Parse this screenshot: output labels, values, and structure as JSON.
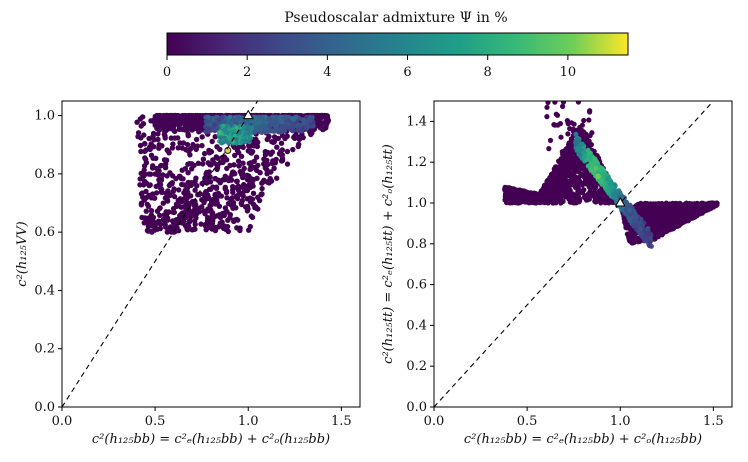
{
  "colorbar": {
    "title": "Pseudoscalar admixture Ψ in %",
    "min": 0,
    "max": 11.5,
    "ticks": [
      0,
      2,
      4,
      6,
      8,
      10
    ],
    "tick_labels": [
      "0",
      "2",
      "4",
      "6",
      "8",
      "10"
    ]
  },
  "colors": {
    "viridis_low": "#440154",
    "viridis_q1": "#3b528b",
    "viridis_mid": "#21918c",
    "viridis_q3": "#5ec962",
    "viridis_high": "#fde725",
    "diagonal_line": "#000000",
    "sm_marker_fill": "#ffffff"
  },
  "chart_data": [
    {
      "type": "scatter",
      "xlabel": "c²(h₁₂₅bb) = c²ₑ(h₁₂₅bb) + c²ₒ(h₁₂₅bb)",
      "ylabel": "c²(h₁₂₅VV)",
      "xlim": [
        0.0,
        1.6
      ],
      "ylim": [
        0.0,
        1.05
      ],
      "xticks": [
        0.0,
        0.5,
        1.0,
        1.5
      ],
      "xtick_labels": [
        "0.0",
        "0.5",
        "1.0",
        "1.5"
      ],
      "yticks": [
        0.0,
        0.2,
        0.4,
        0.6,
        0.8,
        1.0
      ],
      "ytick_labels": [
        "0.0",
        "0.2",
        "0.4",
        "0.6",
        "0.8",
        "1.0"
      ],
      "diagonal": [
        [
          0.0,
          0.0
        ],
        [
          1.05,
          1.05
        ]
      ],
      "sm_point": [
        1.0,
        1.0
      ],
      "regions": [
        {
          "name": "dark cloud",
          "x": [
            0.4,
            1.43
          ],
          "y": [
            0.6,
            1.0
          ],
          "psi": 0
        },
        {
          "name": "upper band",
          "x": [
            0.75,
            1.38
          ],
          "y": [
            0.93,
            1.0
          ],
          "psi": 4
        },
        {
          "name": "admixture cluster",
          "x": [
            0.83,
            1.02
          ],
          "y": [
            0.87,
            0.98
          ],
          "psi": 8
        }
      ],
      "highlighted_points": [
        {
          "x": 0.89,
          "y": 0.88,
          "psi": 11
        }
      ]
    },
    {
      "type": "scatter",
      "xlabel": "c²(h₁₂₅bb) = c²ₑ(h₁₂₅bb) + c²ₒ(h₁₂₅bb)",
      "ylabel": "c²(h₁₂₅tt) = c²ₑ(h₁₂₅tt) + c²ₒ(h₁₂₅tt)",
      "xlim": [
        0.0,
        1.6
      ],
      "ylim": [
        0.0,
        1.5
      ],
      "xticks": [
        0.0,
        0.5,
        1.0,
        1.5
      ],
      "xtick_labels": [
        "0.0",
        "0.5",
        "1.0",
        "1.5"
      ],
      "yticks": [
        0.0,
        0.2,
        0.4,
        0.6,
        0.8,
        1.0,
        1.2,
        1.4
      ],
      "ytick_labels": [
        "0.0",
        "0.2",
        "0.4",
        "0.6",
        "0.8",
        "1.0",
        "1.2",
        "1.4"
      ],
      "diagonal": [
        [
          0.0,
          0.0
        ],
        [
          1.5,
          1.5
        ]
      ],
      "sm_point": [
        1.0,
        1.0
      ],
      "regions": [
        {
          "name": "upper-left fan",
          "x": [
            0.37,
            1.0
          ],
          "y": [
            1.0,
            1.5
          ],
          "psi": 0
        },
        {
          "name": "lower-right fan",
          "x": [
            1.0,
            1.52
          ],
          "y": [
            0.78,
            1.0
          ],
          "psi": 0
        }
      ],
      "admixture_line": {
        "from": [
          0.76,
          1.3
        ],
        "to": [
          1.17,
          0.81
        ]
      },
      "highlighted_points": [
        {
          "x": 0.88,
          "y": 1.13,
          "psi": 10
        }
      ]
    }
  ]
}
